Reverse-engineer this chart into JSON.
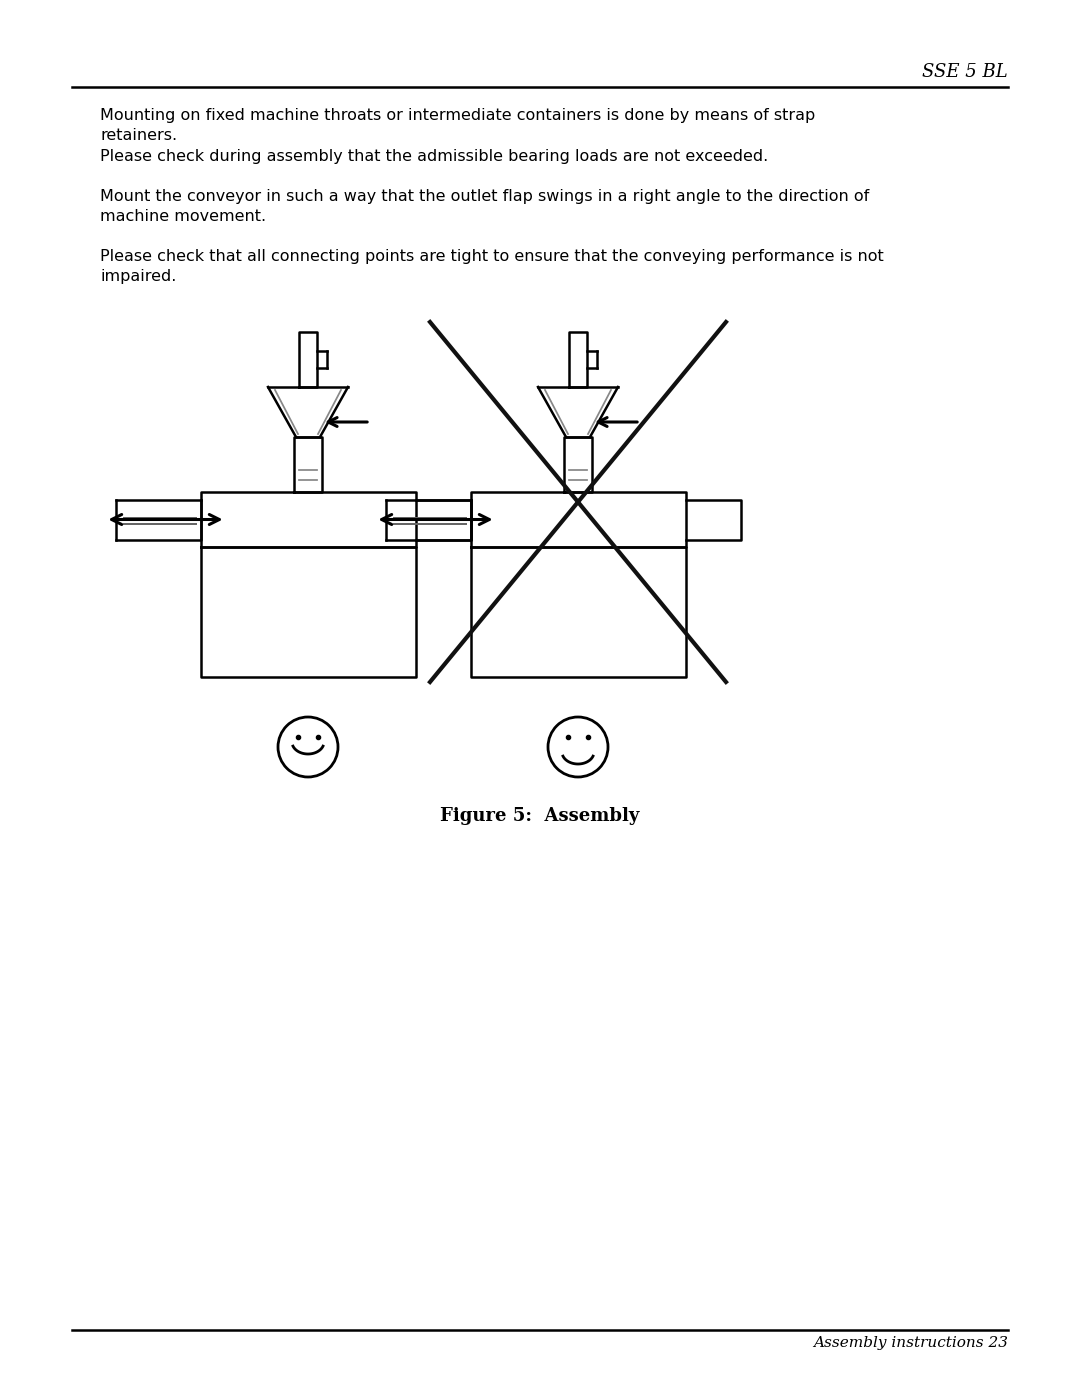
{
  "bg_color": "#ffffff",
  "header_text": "SSE 5 BL",
  "footer_text": "Assembly instructions 23",
  "paragraphs": [
    "Mounting on fixed machine throats or intermediate containers is done by means of strap\nretainers.",
    "Please check during assembly that the admissible bearing loads are not exceeded.",
    "Mount the conveyor in such a way that the outlet flap swings in a right angle to the direction of\nmachine movement.",
    "Please check that all connecting points are tight to ensure that the conveying performance is not\nimpaired."
  ],
  "figure_caption": "Figure 5:  Assembly",
  "text_color": "#000000",
  "line_color": "#000000"
}
